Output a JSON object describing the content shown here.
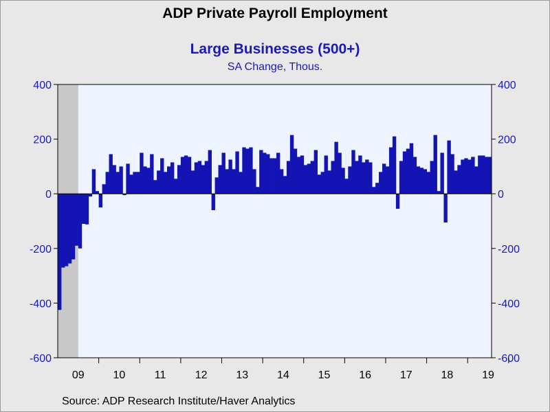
{
  "chart_data": {
    "type": "bar",
    "title": "ADP Private Payroll Employment",
    "subtitle": "Large Businesses (500+)",
    "subtitle2": "SA Change, Thous.",
    "source": "Source:  ADP Research Institute/Haver Analytics",
    "ylim": [
      -600,
      400
    ],
    "yticks": [
      -600,
      -400,
      -200,
      0,
      200,
      400
    ],
    "ytick_labels": [
      "-600",
      "-400",
      "-200",
      "0",
      "200",
      "400"
    ],
    "ytick_labels_right": [
      "-600",
      "-400",
      "-200",
      "0",
      "200",
      "400"
    ],
    "year_labels": [
      "09",
      "10",
      "11",
      "12",
      "13",
      "14",
      "15",
      "16",
      "17",
      "18",
      "19"
    ],
    "recession": {
      "start_month_index": 0,
      "end_month_index": 5
    },
    "grid": false,
    "bar_color": "#1414b4",
    "recession_color": "#c8c8c8",
    "plot_bg": "#eef4ff",
    "x_start": "2009-01",
    "values": [
      -425,
      -270,
      -265,
      -255,
      -240,
      -190,
      -200,
      -110,
      -112,
      -10,
      90,
      10,
      -50,
      35,
      80,
      145,
      105,
      80,
      100,
      -5,
      110,
      70,
      80,
      80,
      150,
      100,
      95,
      145,
      50,
      85,
      130,
      80,
      100,
      115,
      55,
      105,
      135,
      140,
      135,
      85,
      115,
      120,
      105,
      120,
      160,
      -60,
      60,
      105,
      150,
      90,
      125,
      90,
      155,
      80,
      170,
      165,
      170,
      90,
      25,
      160,
      150,
      145,
      130,
      130,
      150,
      90,
      65,
      120,
      215,
      165,
      135,
      140,
      105,
      110,
      120,
      160,
      70,
      80,
      140,
      85,
      120,
      190,
      150,
      95,
      55,
      100,
      160,
      120,
      140,
      115,
      125,
      115,
      25,
      40,
      80,
      110,
      100,
      170,
      210,
      -55,
      120,
      155,
      165,
      185,
      135,
      100,
      95,
      90,
      80,
      120,
      215,
      10,
      150,
      -105,
      195,
      145,
      85,
      105,
      125,
      130,
      125,
      135,
      100,
      140,
      140,
      135,
      135
    ]
  }
}
